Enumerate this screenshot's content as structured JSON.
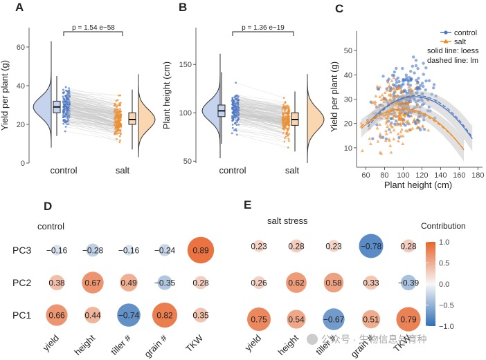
{
  "colors": {
    "control": "#4a76c4",
    "control_fill": "#c5d3ee",
    "salt": "#f08a24",
    "salt_fill": "#fbd7b1",
    "pos": "#e8632a",
    "neg": "#2f6db5",
    "line_gray": "#c8c8c8"
  },
  "chart_data": [
    {
      "panel": "A",
      "type": "violin-box",
      "ylabel": "Yield per plant (g)",
      "categories": [
        "control",
        "salt"
      ],
      "ylim": [
        0,
        70
      ],
      "yticks": [
        "0",
        "20",
        "40",
        "60"
      ],
      "annotation": "p = 1.54 e−58",
      "series": [
        {
          "name": "control",
          "median": 29,
          "q1": 26,
          "q3": 32,
          "whisker_low": 14,
          "whisker_high": 45
        },
        {
          "name": "salt",
          "median": 22.5,
          "q1": 20,
          "q3": 26,
          "whisker_low": 7,
          "whisker_high": 38
        }
      ]
    },
    {
      "panel": "B",
      "type": "violin-box",
      "ylabel": "Plant height (cm)",
      "categories": [
        "control",
        "salt"
      ],
      "ylim": [
        48,
        188
      ],
      "yticks": [
        "50",
        "100",
        "150"
      ],
      "annotation": "p = 1.36 e−19",
      "series": [
        {
          "name": "control",
          "median": 102,
          "q1": 96,
          "q3": 108,
          "whisker_low": 68,
          "whisker_high": 142
        },
        {
          "name": "salt",
          "median": 93,
          "q1": 87,
          "q3": 100,
          "whisker_low": 60,
          "whisker_high": 122
        }
      ]
    },
    {
      "panel": "C",
      "type": "scatter",
      "xlabel": "Plant height (cm)",
      "ylabel": "Yield per plant (g)",
      "xlim": [
        50,
        185
      ],
      "ylim": [
        2,
        58
      ],
      "xticks": [
        "60",
        "80",
        "100",
        "120",
        "140",
        "160",
        "180"
      ],
      "yticks": [
        "10",
        "20",
        "30",
        "40",
        "50"
      ],
      "legend": [
        "control",
        "salt"
      ],
      "notes": [
        "solid line: loess",
        "dashed line: lm"
      ]
    },
    {
      "panel": "D",
      "type": "heatmap",
      "title": "control",
      "columns": [
        "yield",
        "height",
        "tiller #",
        "grain #",
        "TKW"
      ],
      "rows": [
        "PC3",
        "PC2",
        "PC1"
      ],
      "values": [
        [
          "−0.16",
          "−0.28",
          "−0.16",
          "−0.24",
          "0.89"
        ],
        [
          "0.38",
          "0.67",
          "0.49",
          "−0.35",
          "0.28"
        ],
        [
          "0.66",
          "0.44",
          "−0.74",
          "0.82",
          "0.35"
        ]
      ]
    },
    {
      "panel": "E",
      "type": "heatmap",
      "title": "salt stress",
      "columns": [
        "yield",
        "height",
        "tiller #",
        "grain #",
        "TKW"
      ],
      "rows": [
        "PC3",
        "PC2",
        "PC1"
      ],
      "values": [
        [
          "0.23",
          "0.28",
          "0.23",
          "−0.78",
          "0.28"
        ],
        [
          "0.26",
          "0.62",
          "0.58",
          "0.33",
          "−0.39"
        ],
        [
          "0.75",
          "0.54",
          "−0.67",
          "0.51",
          "0.79"
        ]
      ],
      "colorbar": {
        "title": "Contribution",
        "ticks": [
          "1.0",
          "0.5",
          "0.0",
          "−0.5",
          "−1.0"
        ]
      }
    }
  ],
  "watermark": "公众号 · 生物信息与育种"
}
